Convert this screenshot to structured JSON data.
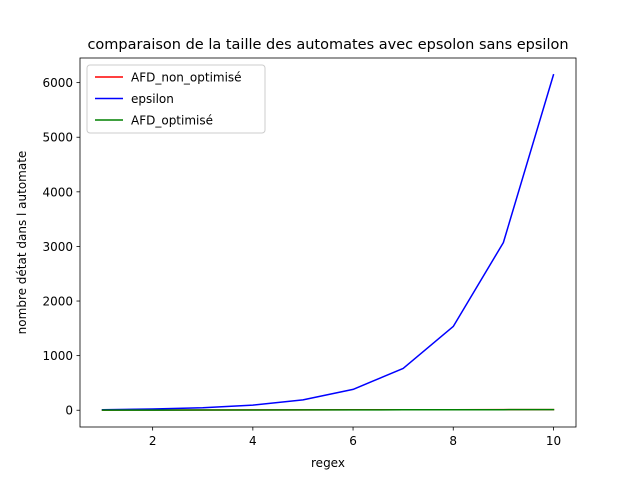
{
  "chart_data": {
    "type": "line",
    "title": "comparaison de la taille des automates avec epsolon sans epsilon",
    "xlabel": "regex",
    "ylabel": "nombre détat dans l automate",
    "x": [
      1,
      2,
      3,
      4,
      5,
      6,
      7,
      8,
      9,
      10
    ],
    "xlim": [
      0.55,
      10.45
    ],
    "ylim": [
      -307,
      6451
    ],
    "xticks": [
      2,
      4,
      6,
      8,
      10
    ],
    "yticks": [
      0,
      1000,
      2000,
      3000,
      4000,
      5000,
      6000
    ],
    "grid": false,
    "legend_position": "top-left",
    "series": [
      {
        "name": "AFD_non_optimisé",
        "color": "#ff0000",
        "values": [
          3,
          4,
          5,
          6,
          7,
          8,
          9,
          10,
          11,
          12
        ]
      },
      {
        "name": "epsilon",
        "color": "#0000ff",
        "values": [
          10,
          22,
          46,
          94,
          190,
          382,
          766,
          1534,
          3070,
          6142
        ]
      },
      {
        "name": "AFD_optimisé",
        "color": "#008000",
        "values": [
          2,
          3,
          4,
          5,
          6,
          7,
          8,
          9,
          10,
          11
        ]
      }
    ]
  }
}
